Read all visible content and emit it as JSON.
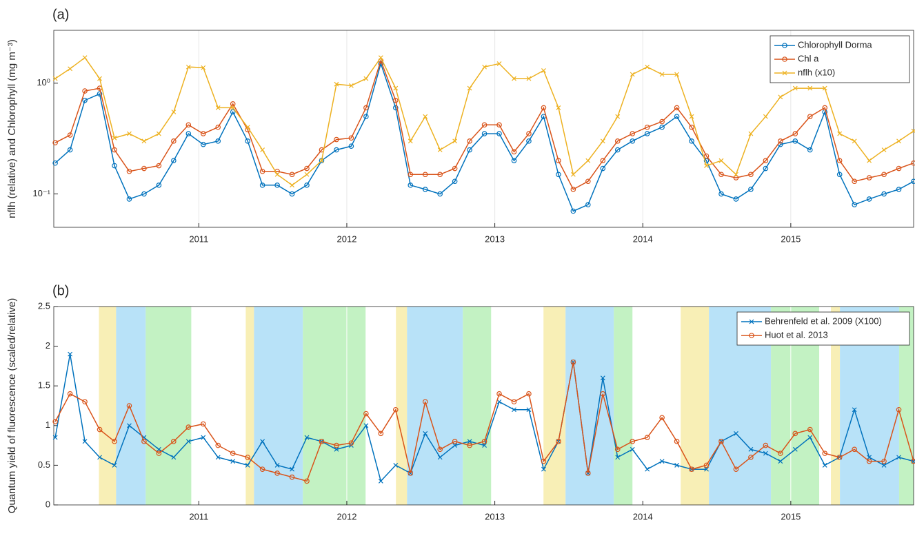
{
  "chart_data": [
    {
      "type": "line",
      "panel_label": "(a)",
      "ylabel": "nflh (relative) and Chlorophyll (mg m⁻³)",
      "log_y": true,
      "grid": true,
      "legend": "northeast",
      "xlim": [
        2010.02,
        2015.83
      ],
      "xticks": [
        2011,
        2012,
        2013,
        2014,
        2015
      ],
      "ylim": [
        0.05,
        3
      ],
      "yticks": [
        {
          "value": 0.1,
          "label": "10⁻¹"
        },
        {
          "value": 1,
          "label": "10⁰"
        }
      ],
      "x": [
        2010.03,
        2010.13,
        2010.23,
        2010.33,
        2010.43,
        2010.53,
        2010.63,
        2010.73,
        2010.83,
        2010.93,
        2011.03,
        2011.13,
        2011.23,
        2011.33,
        2011.43,
        2011.53,
        2011.63,
        2011.73,
        2011.83,
        2011.93,
        2012.03,
        2012.13,
        2012.23,
        2012.33,
        2012.43,
        2012.53,
        2012.63,
        2012.73,
        2012.83,
        2012.93,
        2013.03,
        2013.13,
        2013.23,
        2013.33,
        2013.43,
        2013.53,
        2013.63,
        2013.73,
        2013.83,
        2013.93,
        2014.03,
        2014.13,
        2014.23,
        2014.33,
        2014.43,
        2014.53,
        2014.63,
        2014.73,
        2014.83,
        2014.93,
        2015.03,
        2015.13,
        2015.23,
        2015.33,
        2015.43,
        2015.53,
        2015.63,
        2015.73,
        2015.83
      ],
      "series": [
        {
          "name": "Chlorophyll Dorma",
          "color": "#0072bd",
          "marker": "o",
          "values": [
            0.19,
            0.25,
            0.7,
            0.8,
            0.18,
            0.09,
            0.1,
            0.12,
            0.2,
            0.35,
            0.28,
            0.3,
            0.55,
            0.3,
            0.12,
            0.12,
            0.1,
            0.12,
            0.2,
            0.25,
            0.27,
            0.5,
            1.5,
            0.6,
            0.12,
            0.11,
            0.1,
            0.13,
            0.25,
            0.35,
            0.35,
            0.2,
            0.3,
            0.5,
            0.15,
            0.07,
            0.08,
            0.17,
            0.25,
            0.3,
            0.35,
            0.4,
            0.5,
            0.3,
            0.2,
            0.1,
            0.09,
            0.11,
            0.17,
            0.28,
            0.3,
            0.25,
            0.55,
            0.15,
            0.08,
            0.09,
            0.1,
            0.11,
            0.13
          ]
        },
        {
          "name": "Chl a",
          "color": "#d95319",
          "marker": "o",
          "values": [
            0.29,
            0.34,
            0.85,
            0.9,
            0.25,
            0.16,
            0.17,
            0.18,
            0.3,
            0.42,
            0.35,
            0.4,
            0.65,
            0.38,
            0.16,
            0.16,
            0.15,
            0.17,
            0.25,
            0.31,
            0.32,
            0.6,
            1.6,
            0.7,
            0.15,
            0.15,
            0.15,
            0.17,
            0.3,
            0.42,
            0.42,
            0.24,
            0.35,
            0.6,
            0.2,
            0.11,
            0.13,
            0.2,
            0.3,
            0.35,
            0.4,
            0.45,
            0.6,
            0.4,
            0.22,
            0.15,
            0.14,
            0.15,
            0.2,
            0.3,
            0.35,
            0.5,
            0.6,
            0.2,
            0.13,
            0.14,
            0.15,
            0.17,
            0.19
          ]
        },
        {
          "name": "nflh (x10)",
          "color": "#edb120",
          "marker": "x",
          "values": [
            1.1,
            1.35,
            1.7,
            1.1,
            0.32,
            0.35,
            0.3,
            0.35,
            0.55,
            1.4,
            1.38,
            0.6,
            0.6,
            0.4,
            0.25,
            0.15,
            0.12,
            0.15,
            0.2,
            0.98,
            0.95,
            1.1,
            1.7,
            0.9,
            0.3,
            0.5,
            0.25,
            0.3,
            0.9,
            1.4,
            1.5,
            1.1,
            1.1,
            1.3,
            0.6,
            0.15,
            0.2,
            0.3,
            0.5,
            1.2,
            1.4,
            1.2,
            1.2,
            0.5,
            0.18,
            0.2,
            0.15,
            0.35,
            0.5,
            0.75,
            0.9,
            0.9,
            0.9,
            0.35,
            0.3,
            0.2,
            0.25,
            0.3,
            0.37
          ]
        }
      ]
    },
    {
      "type": "line",
      "panel_label": "(b)",
      "ylabel": "Quantum yield of fluorescence (scaled/relative)",
      "log_y": false,
      "grid": true,
      "legend": "northeast",
      "xlim": [
        2010.02,
        2015.83
      ],
      "xticks": [
        2011,
        2012,
        2013,
        2014,
        2015
      ],
      "ylim": [
        0,
        2.5
      ],
      "yticks": [
        0,
        0.5,
        1,
        1.5,
        2,
        2.5
      ],
      "bands": [
        {
          "start": 2010.325,
          "end": 2010.441,
          "color": "#f8efb6"
        },
        {
          "start": 2010.441,
          "end": 2010.641,
          "color": "#b8e2f8"
        },
        {
          "start": 2010.641,
          "end": 2010.949,
          "color": "#c3f2c3"
        },
        {
          "start": 2011.317,
          "end": 2011.373,
          "color": "#f8efb6"
        },
        {
          "start": 2011.373,
          "end": 2011.703,
          "color": "#b8e2f8"
        },
        {
          "start": 2011.703,
          "end": 2012.127,
          "color": "#c3f2c3"
        },
        {
          "start": 2012.332,
          "end": 2012.407,
          "color": "#f8efb6"
        },
        {
          "start": 2012.407,
          "end": 2012.784,
          "color": "#b8e2f8"
        },
        {
          "start": 2012.784,
          "end": 2012.975,
          "color": "#c3f2c3"
        },
        {
          "start": 2013.329,
          "end": 2013.478,
          "color": "#f8efb6"
        },
        {
          "start": 2013.478,
          "end": 2013.804,
          "color": "#b8e2f8"
        },
        {
          "start": 2013.804,
          "end": 2013.93,
          "color": "#c3f2c3"
        },
        {
          "start": 2014.256,
          "end": 2014.447,
          "color": "#f8efb6"
        },
        {
          "start": 2014.447,
          "end": 2014.866,
          "color": "#b8e2f8"
        },
        {
          "start": 2014.866,
          "end": 2015.192,
          "color": "#c3f2c3"
        },
        {
          "start": 2015.271,
          "end": 2015.332,
          "color": "#f8efb6"
        },
        {
          "start": 2015.332,
          "end": 2015.732,
          "color": "#b8e2f8"
        },
        {
          "start": 2015.732,
          "end": 2015.83,
          "color": "#c3f2c3"
        }
      ],
      "x": [
        2010.03,
        2010.13,
        2010.23,
        2010.33,
        2010.43,
        2010.53,
        2010.63,
        2010.73,
        2010.83,
        2010.93,
        2011.03,
        2011.13,
        2011.23,
        2011.33,
        2011.43,
        2011.53,
        2011.63,
        2011.73,
        2011.83,
        2011.93,
        2012.03,
        2012.13,
        2012.23,
        2012.33,
        2012.43,
        2012.53,
        2012.63,
        2012.73,
        2012.83,
        2012.93,
        2013.03,
        2013.13,
        2013.23,
        2013.33,
        2013.43,
        2013.53,
        2013.63,
        2013.73,
        2013.83,
        2013.93,
        2014.03,
        2014.13,
        2014.23,
        2014.33,
        2014.43,
        2014.53,
        2014.63,
        2014.73,
        2014.83,
        2014.93,
        2015.03,
        2015.13,
        2015.23,
        2015.33,
        2015.43,
        2015.53,
        2015.63,
        2015.73,
        2015.83
      ],
      "series": [
        {
          "name": "Behrenfeld et al. 2009 (X100)",
          "color": "#0072bd",
          "marker": "x",
          "values": [
            0.85,
            1.9,
            0.8,
            0.6,
            0.5,
            1.0,
            0.85,
            0.7,
            0.6,
            0.8,
            0.85,
            0.6,
            0.55,
            0.5,
            0.8,
            0.5,
            0.45,
            0.85,
            0.8,
            0.7,
            0.75,
            1.0,
            0.3,
            0.5,
            0.4,
            0.9,
            0.6,
            0.75,
            0.8,
            0.75,
            1.3,
            1.2,
            1.2,
            0.45,
            0.8,
            1.8,
            0.4,
            1.6,
            0.6,
            0.7,
            0.45,
            0.55,
            0.5,
            0.45,
            0.45,
            0.8,
            0.9,
            0.7,
            0.65,
            0.55,
            0.7,
            0.85,
            0.5,
            0.6,
            1.2,
            0.6,
            0.5,
            0.6,
            0.55
          ]
        },
        {
          "name": "Huot et al. 2013",
          "color": "#d95319",
          "marker": "o",
          "values": [
            1.05,
            1.4,
            1.3,
            0.95,
            0.8,
            1.25,
            0.8,
            0.65,
            0.8,
            0.98,
            1.02,
            0.75,
            0.65,
            0.6,
            0.45,
            0.4,
            0.35,
            0.3,
            0.8,
            0.75,
            0.78,
            1.15,
            0.9,
            1.2,
            0.4,
            1.3,
            0.7,
            0.8,
            0.75,
            0.8,
            1.4,
            1.3,
            1.4,
            0.55,
            0.8,
            1.8,
            0.4,
            1.4,
            0.7,
            0.8,
            0.85,
            1.1,
            0.8,
            0.45,
            0.5,
            0.8,
            0.45,
            0.6,
            0.75,
            0.65,
            0.9,
            0.95,
            0.65,
            0.6,
            0.7,
            0.55,
            0.55,
            1.2,
            0.55
          ]
        }
      ]
    }
  ]
}
